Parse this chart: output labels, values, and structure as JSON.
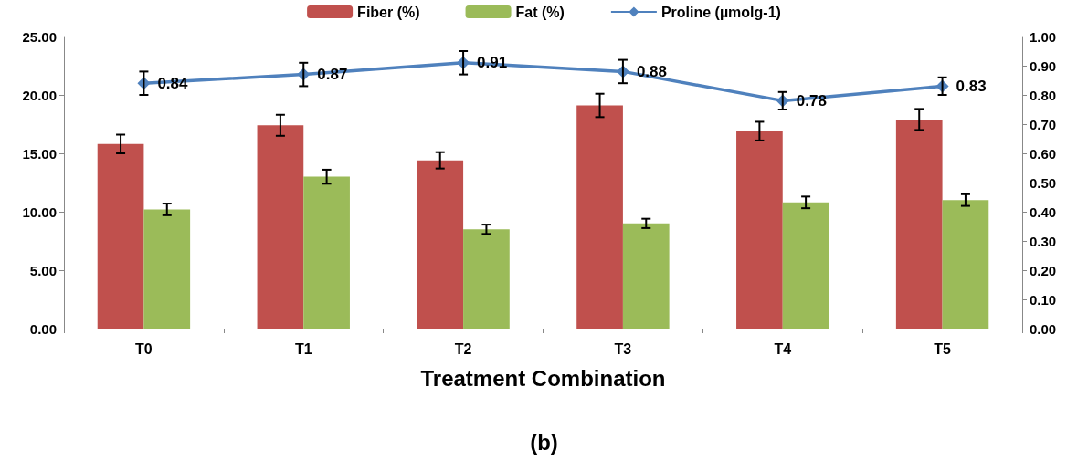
{
  "chart_data": {
    "type": "bar",
    "xlabel": "Treatment Combination",
    "categories": [
      "T0",
      "T1",
      "T2",
      "T3",
      "T4",
      "T5"
    ],
    "series": [
      {
        "name": "Fiber (%)",
        "color": "#c0504d",
        "values": [
          15.8,
          17.4,
          14.4,
          19.1,
          16.9,
          17.9
        ],
        "errors": [
          0.8,
          0.9,
          0.7,
          1.0,
          0.8,
          0.9
        ]
      },
      {
        "name": "Fat (%)",
        "color": "#9bbb59",
        "values": [
          10.2,
          13.0,
          8.5,
          9.0,
          10.8,
          11.0
        ],
        "errors": [
          0.5,
          0.6,
          0.4,
          0.4,
          0.5,
          0.5
        ]
      },
      {
        "name": "Proline (µmolg-1)",
        "type": "line",
        "axis": "y2",
        "color": "#4f81bd",
        "marker": "diamond",
        "values": [
          0.84,
          0.87,
          0.91,
          0.88,
          0.78,
          0.83
        ],
        "errors": [
          0.04,
          0.04,
          0.04,
          0.04,
          0.03,
          0.03
        ],
        "value_labels": [
          "0.84",
          "0.87",
          "0.91",
          "0.88",
          "0.78",
          "0.83"
        ]
      }
    ],
    "ylim": [
      0,
      25
    ],
    "yticks": [
      {
        "value": 0,
        "label": "0.00"
      },
      {
        "value": 5,
        "label": "5.00"
      },
      {
        "value": 10,
        "label": "10.00"
      },
      {
        "value": 15,
        "label": "15.00"
      },
      {
        "value": 20,
        "label": "20.00"
      },
      {
        "value": 25,
        "label": "25.00"
      }
    ],
    "y2lim": [
      0,
      1
    ],
    "y2ticks": [
      {
        "value": 0,
        "label": "0.00"
      },
      {
        "value": 0.1,
        "label": "0.10"
      },
      {
        "value": 0.2,
        "label": "0.20"
      },
      {
        "value": 0.3,
        "label": "0.30"
      },
      {
        "value": 0.4,
        "label": "0.40"
      },
      {
        "value": 0.5,
        "label": "0.50"
      },
      {
        "value": 0.6,
        "label": "0.60"
      },
      {
        "value": 0.7,
        "label": "0.70"
      },
      {
        "value": 0.8,
        "label": "0.80"
      },
      {
        "value": 0.9,
        "label": "0.90"
      },
      {
        "value": 1,
        "label": "1.00"
      }
    ],
    "grid": false,
    "legend": "top",
    "annotations": [
      "(b)"
    ]
  }
}
